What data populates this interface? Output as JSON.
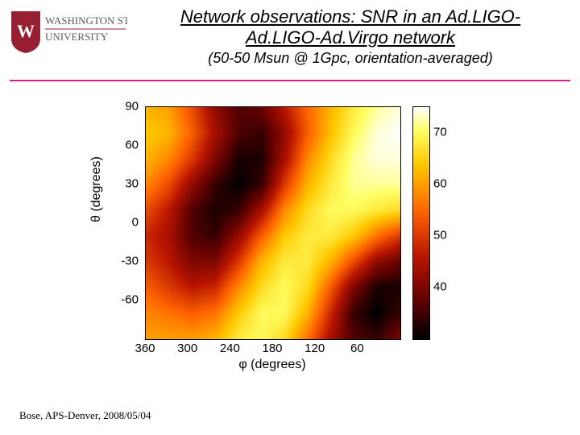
{
  "title_line1": "Network observations: SNR in an Ad.LIGO-",
  "title_line2": "Ad.LIGO-Ad.Virgo network",
  "subtitle": "(50-50 Msun @ 1Gpc, orientation-averaged)",
  "footer": "Bose, APS-Denver, 2008/05/04",
  "logo": {
    "text_top": "WASHINGTON STATE",
    "text_bottom": "UNIVERSITY",
    "shield_color": "#981e32",
    "text_color": "#5b5b5b"
  },
  "divider_color": "#d02090",
  "heatmap": {
    "type": "heatmap",
    "xlabel": "φ (degrees)",
    "ylabel": "θ (degrees)",
    "xlim": [
      360,
      0
    ],
    "ylim": [
      -90,
      90
    ],
    "xticks": [
      360,
      300,
      240,
      180,
      120,
      60
    ],
    "yticks": [
      90,
      60,
      30,
      0,
      -30,
      -60
    ],
    "cbar_ticks": [
      70,
      60,
      50,
      40
    ],
    "cbar_min": 30,
    "cbar_max": 75,
    "grid_nx": 12,
    "grid_ny": 10,
    "values": [
      [
        62,
        60,
        52,
        42,
        36,
        38,
        46,
        55,
        62,
        68,
        72,
        74
      ],
      [
        64,
        62,
        54,
        44,
        36,
        34,
        42,
        54,
        63,
        70,
        74,
        75
      ],
      [
        62,
        58,
        50,
        40,
        32,
        32,
        44,
        58,
        66,
        72,
        74,
        74
      ],
      [
        58,
        52,
        42,
        34,
        30,
        34,
        50,
        62,
        68,
        72,
        72,
        72
      ],
      [
        52,
        46,
        36,
        32,
        34,
        44,
        58,
        66,
        70,
        70,
        68,
        66
      ],
      [
        48,
        44,
        36,
        34,
        42,
        54,
        64,
        68,
        68,
        64,
        56,
        50
      ],
      [
        50,
        46,
        40,
        40,
        50,
        62,
        68,
        68,
        62,
        52,
        42,
        38
      ],
      [
        54,
        50,
        46,
        48,
        58,
        66,
        70,
        66,
        54,
        40,
        32,
        32
      ],
      [
        58,
        56,
        54,
        56,
        64,
        70,
        70,
        62,
        48,
        34,
        30,
        34
      ],
      [
        60,
        60,
        60,
        62,
        68,
        70,
        66,
        56,
        44,
        36,
        34,
        40
      ]
    ],
    "label_fontsize": 16,
    "tick_fontsize": 15,
    "axis_color": "#000000"
  },
  "colormap": {
    "stops": [
      {
        "t": 0.0,
        "color": "#000000"
      },
      {
        "t": 0.15,
        "color": "#5a0000"
      },
      {
        "t": 0.35,
        "color": "#b81400"
      },
      {
        "t": 0.55,
        "color": "#ff6400"
      },
      {
        "t": 0.75,
        "color": "#ffc800"
      },
      {
        "t": 0.9,
        "color": "#ffff64"
      },
      {
        "t": 1.0,
        "color": "#ffffff"
      }
    ]
  }
}
